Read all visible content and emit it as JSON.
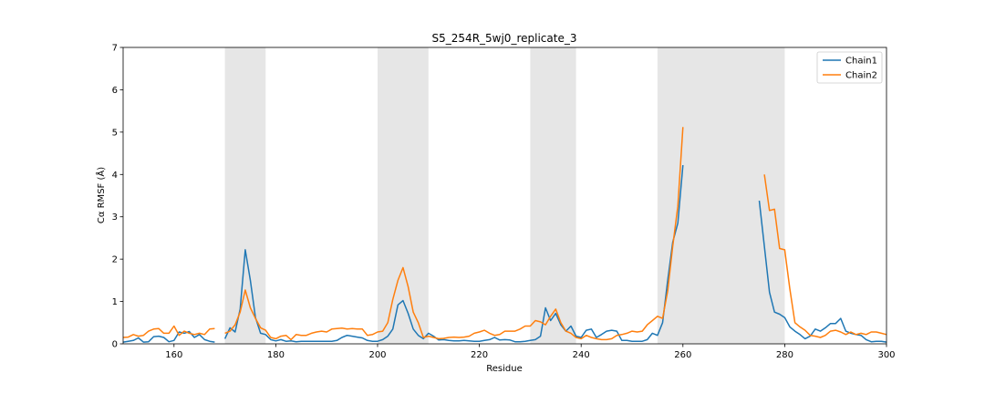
{
  "chart_data": {
    "type": "line",
    "title": "S5_254R_5wj0_replicate_3",
    "xlabel": "Residue",
    "ylabel": "Cα RMSF (Å)",
    "xlim": [
      150,
      300
    ],
    "ylim": [
      0,
      7
    ],
    "xticks": [
      160,
      180,
      200,
      220,
      240,
      260,
      280,
      300
    ],
    "yticks": [
      0,
      1,
      2,
      3,
      4,
      5,
      6,
      7
    ],
    "grid": false,
    "legend_position": "top-right",
    "shaded_regions": [
      [
        170,
        178
      ],
      [
        200,
        210
      ],
      [
        230,
        239
      ],
      [
        255,
        280
      ]
    ],
    "series": [
      {
        "name": "Chain1",
        "color": "#1f77b4",
        "segments": [
          [
            [
              150,
              0.04
            ],
            [
              151,
              0.06
            ],
            [
              152,
              0.08
            ],
            [
              153,
              0.14
            ],
            [
              154,
              0.04
            ],
            [
              155,
              0.05
            ],
            [
              156,
              0.17
            ],
            [
              157,
              0.18
            ],
            [
              158,
              0.15
            ],
            [
              159,
              0.05
            ],
            [
              160,
              0.08
            ],
            [
              161,
              0.28
            ],
            [
              162,
              0.25
            ],
            [
              163,
              0.29
            ],
            [
              164,
              0.15
            ],
            [
              165,
              0.22
            ],
            [
              166,
              0.1
            ],
            [
              167,
              0.06
            ],
            [
              168,
              0.04
            ]
          ],
          [
            [
              170,
              0.12
            ],
            [
              171,
              0.38
            ],
            [
              172,
              0.28
            ],
            [
              173,
              0.82
            ],
            [
              174,
              2.22
            ],
            [
              175,
              1.5
            ],
            [
              176,
              0.62
            ],
            [
              177,
              0.25
            ],
            [
              178,
              0.22
            ],
            [
              179,
              0.1
            ],
            [
              180,
              0.07
            ],
            [
              181,
              0.1
            ],
            [
              182,
              0.06
            ],
            [
              183,
              0.07
            ],
            [
              184,
              0.05
            ],
            [
              185,
              0.06
            ],
            [
              186,
              0.06
            ],
            [
              187,
              0.06
            ],
            [
              188,
              0.06
            ],
            [
              189,
              0.06
            ],
            [
              190,
              0.06
            ],
            [
              191,
              0.06
            ],
            [
              192,
              0.08
            ],
            [
              193,
              0.15
            ],
            [
              194,
              0.2
            ],
            [
              195,
              0.18
            ],
            [
              196,
              0.16
            ],
            [
              197,
              0.14
            ],
            [
              198,
              0.08
            ],
            [
              199,
              0.06
            ],
            [
              200,
              0.06
            ],
            [
              201,
              0.1
            ],
            [
              202,
              0.18
            ],
            [
              203,
              0.35
            ],
            [
              204,
              0.92
            ],
            [
              205,
              1.02
            ],
            [
              206,
              0.72
            ],
            [
              207,
              0.35
            ],
            [
              208,
              0.2
            ],
            [
              209,
              0.12
            ],
            [
              210,
              0.25
            ],
            [
              211,
              0.18
            ],
            [
              212,
              0.09
            ],
            [
              213,
              0.1
            ],
            [
              214,
              0.08
            ],
            [
              215,
              0.07
            ],
            [
              216,
              0.07
            ],
            [
              217,
              0.08
            ],
            [
              218,
              0.07
            ],
            [
              219,
              0.06
            ],
            [
              220,
              0.06
            ],
            [
              221,
              0.08
            ],
            [
              222,
              0.1
            ],
            [
              223,
              0.15
            ],
            [
              224,
              0.09
            ],
            [
              225,
              0.1
            ],
            [
              226,
              0.09
            ],
            [
              227,
              0.05
            ],
            [
              228,
              0.05
            ],
            [
              229,
              0.06
            ],
            [
              230,
              0.08
            ],
            [
              231,
              0.1
            ],
            [
              232,
              0.18
            ],
            [
              233,
              0.85
            ],
            [
              234,
              0.55
            ],
            [
              235,
              0.72
            ],
            [
              236,
              0.45
            ],
            [
              237,
              0.3
            ],
            [
              238,
              0.42
            ],
            [
              239,
              0.18
            ],
            [
              240,
              0.15
            ],
            [
              241,
              0.32
            ],
            [
              242,
              0.35
            ],
            [
              243,
              0.15
            ],
            [
              244,
              0.22
            ],
            [
              245,
              0.3
            ],
            [
              246,
              0.32
            ],
            [
              247,
              0.3
            ],
            [
              248,
              0.08
            ],
            [
              249,
              0.08
            ],
            [
              250,
              0.06
            ],
            [
              251,
              0.06
            ],
            [
              252,
              0.06
            ],
            [
              253,
              0.1
            ],
            [
              254,
              0.25
            ],
            [
              255,
              0.2
            ],
            [
              256,
              0.5
            ],
            [
              257,
              1.5
            ],
            [
              258,
              2.4
            ],
            [
              259,
              2.85
            ],
            [
              260,
              4.22
            ]
          ],
          [
            [
              275,
              3.38
            ],
            [
              276,
              2.3
            ],
            [
              277,
              1.22
            ],
            [
              278,
              0.75
            ],
            [
              279,
              0.7
            ],
            [
              280,
              0.62
            ],
            [
              281,
              0.4
            ],
            [
              282,
              0.3
            ],
            [
              283,
              0.22
            ],
            [
              284,
              0.12
            ],
            [
              285,
              0.18
            ],
            [
              286,
              0.35
            ],
            [
              287,
              0.3
            ],
            [
              288,
              0.38
            ],
            [
              289,
              0.48
            ],
            [
              290,
              0.48
            ],
            [
              291,
              0.6
            ],
            [
              292,
              0.3
            ],
            [
              293,
              0.25
            ],
            [
              294,
              0.22
            ],
            [
              295,
              0.2
            ],
            [
              296,
              0.1
            ],
            [
              297,
              0.05
            ],
            [
              298,
              0.06
            ],
            [
              299,
              0.06
            ],
            [
              300,
              0.04
            ]
          ]
        ]
      },
      {
        "name": "Chain2",
        "color": "#ff7f0e",
        "segments": [
          [
            [
              150,
              0.15
            ],
            [
              151,
              0.16
            ],
            [
              152,
              0.22
            ],
            [
              153,
              0.18
            ],
            [
              154,
              0.2
            ],
            [
              155,
              0.3
            ],
            [
              156,
              0.35
            ],
            [
              157,
              0.36
            ],
            [
              158,
              0.25
            ],
            [
              159,
              0.25
            ],
            [
              160,
              0.42
            ],
            [
              161,
              0.2
            ],
            [
              162,
              0.3
            ],
            [
              163,
              0.25
            ],
            [
              164,
              0.22
            ],
            [
              165,
              0.25
            ],
            [
              166,
              0.22
            ],
            [
              167,
              0.35
            ],
            [
              168,
              0.36
            ]
          ],
          [
            [
              170,
              0.25
            ],
            [
              171,
              0.3
            ],
            [
              172,
              0.45
            ],
            [
              173,
              0.75
            ],
            [
              174,
              1.27
            ],
            [
              175,
              0.85
            ],
            [
              176,
              0.6
            ],
            [
              177,
              0.38
            ],
            [
              178,
              0.32
            ],
            [
              179,
              0.15
            ],
            [
              180,
              0.12
            ],
            [
              181,
              0.18
            ],
            [
              182,
              0.2
            ],
            [
              183,
              0.1
            ],
            [
              184,
              0.22
            ],
            [
              185,
              0.2
            ],
            [
              186,
              0.2
            ],
            [
              187,
              0.25
            ],
            [
              188,
              0.28
            ],
            [
              189,
              0.3
            ],
            [
              190,
              0.28
            ],
            [
              191,
              0.35
            ],
            [
              192,
              0.36
            ],
            [
              193,
              0.37
            ],
            [
              194,
              0.35
            ],
            [
              195,
              0.36
            ],
            [
              196,
              0.35
            ],
            [
              197,
              0.35
            ],
            [
              198,
              0.2
            ],
            [
              199,
              0.22
            ],
            [
              200,
              0.28
            ],
            [
              201,
              0.3
            ],
            [
              202,
              0.5
            ],
            [
              203,
              1.05
            ],
            [
              204,
              1.5
            ],
            [
              205,
              1.8
            ],
            [
              206,
              1.35
            ],
            [
              207,
              0.75
            ],
            [
              208,
              0.5
            ],
            [
              209,
              0.15
            ],
            [
              210,
              0.18
            ],
            [
              211,
              0.15
            ],
            [
              212,
              0.12
            ],
            [
              213,
              0.13
            ],
            [
              214,
              0.15
            ],
            [
              215,
              0.16
            ],
            [
              216,
              0.15
            ],
            [
              217,
              0.16
            ],
            [
              218,
              0.18
            ],
            [
              219,
              0.25
            ],
            [
              220,
              0.28
            ],
            [
              221,
              0.32
            ],
            [
              222,
              0.25
            ],
            [
              223,
              0.2
            ],
            [
              224,
              0.22
            ],
            [
              225,
              0.3
            ],
            [
              226,
              0.3
            ],
            [
              227,
              0.3
            ],
            [
              228,
              0.35
            ],
            [
              229,
              0.42
            ],
            [
              230,
              0.42
            ],
            [
              231,
              0.55
            ],
            [
              232,
              0.52
            ],
            [
              233,
              0.45
            ],
            [
              234,
              0.65
            ],
            [
              235,
              0.82
            ],
            [
              236,
              0.5
            ],
            [
              237,
              0.3
            ],
            [
              238,
              0.25
            ],
            [
              239,
              0.15
            ],
            [
              240,
              0.12
            ],
            [
              241,
              0.2
            ],
            [
              242,
              0.15
            ],
            [
              243,
              0.12
            ],
            [
              244,
              0.1
            ],
            [
              245,
              0.1
            ],
            [
              246,
              0.12
            ],
            [
              247,
              0.2
            ],
            [
              248,
              0.22
            ],
            [
              249,
              0.25
            ],
            [
              250,
              0.3
            ],
            [
              251,
              0.28
            ],
            [
              252,
              0.3
            ],
            [
              253,
              0.45
            ],
            [
              254,
              0.55
            ],
            [
              255,
              0.65
            ],
            [
              256,
              0.6
            ],
            [
              257,
              1.25
            ],
            [
              258,
              2.3
            ],
            [
              259,
              3.25
            ],
            [
              260,
              5.12
            ]
          ],
          [
            [
              276,
              4.0
            ],
            [
              277,
              3.15
            ],
            [
              278,
              3.18
            ],
            [
              279,
              2.25
            ],
            [
              280,
              2.22
            ],
            [
              281,
              1.3
            ],
            [
              282,
              0.5
            ],
            [
              283,
              0.4
            ],
            [
              284,
              0.32
            ],
            [
              285,
              0.2
            ],
            [
              286,
              0.18
            ],
            [
              287,
              0.15
            ],
            [
              288,
              0.2
            ],
            [
              289,
              0.3
            ],
            [
              290,
              0.32
            ],
            [
              291,
              0.28
            ],
            [
              292,
              0.22
            ],
            [
              293,
              0.28
            ],
            [
              294,
              0.22
            ],
            [
              295,
              0.25
            ],
            [
              296,
              0.22
            ],
            [
              297,
              0.28
            ],
            [
              298,
              0.28
            ],
            [
              299,
              0.25
            ],
            [
              300,
              0.22
            ]
          ]
        ]
      }
    ]
  }
}
